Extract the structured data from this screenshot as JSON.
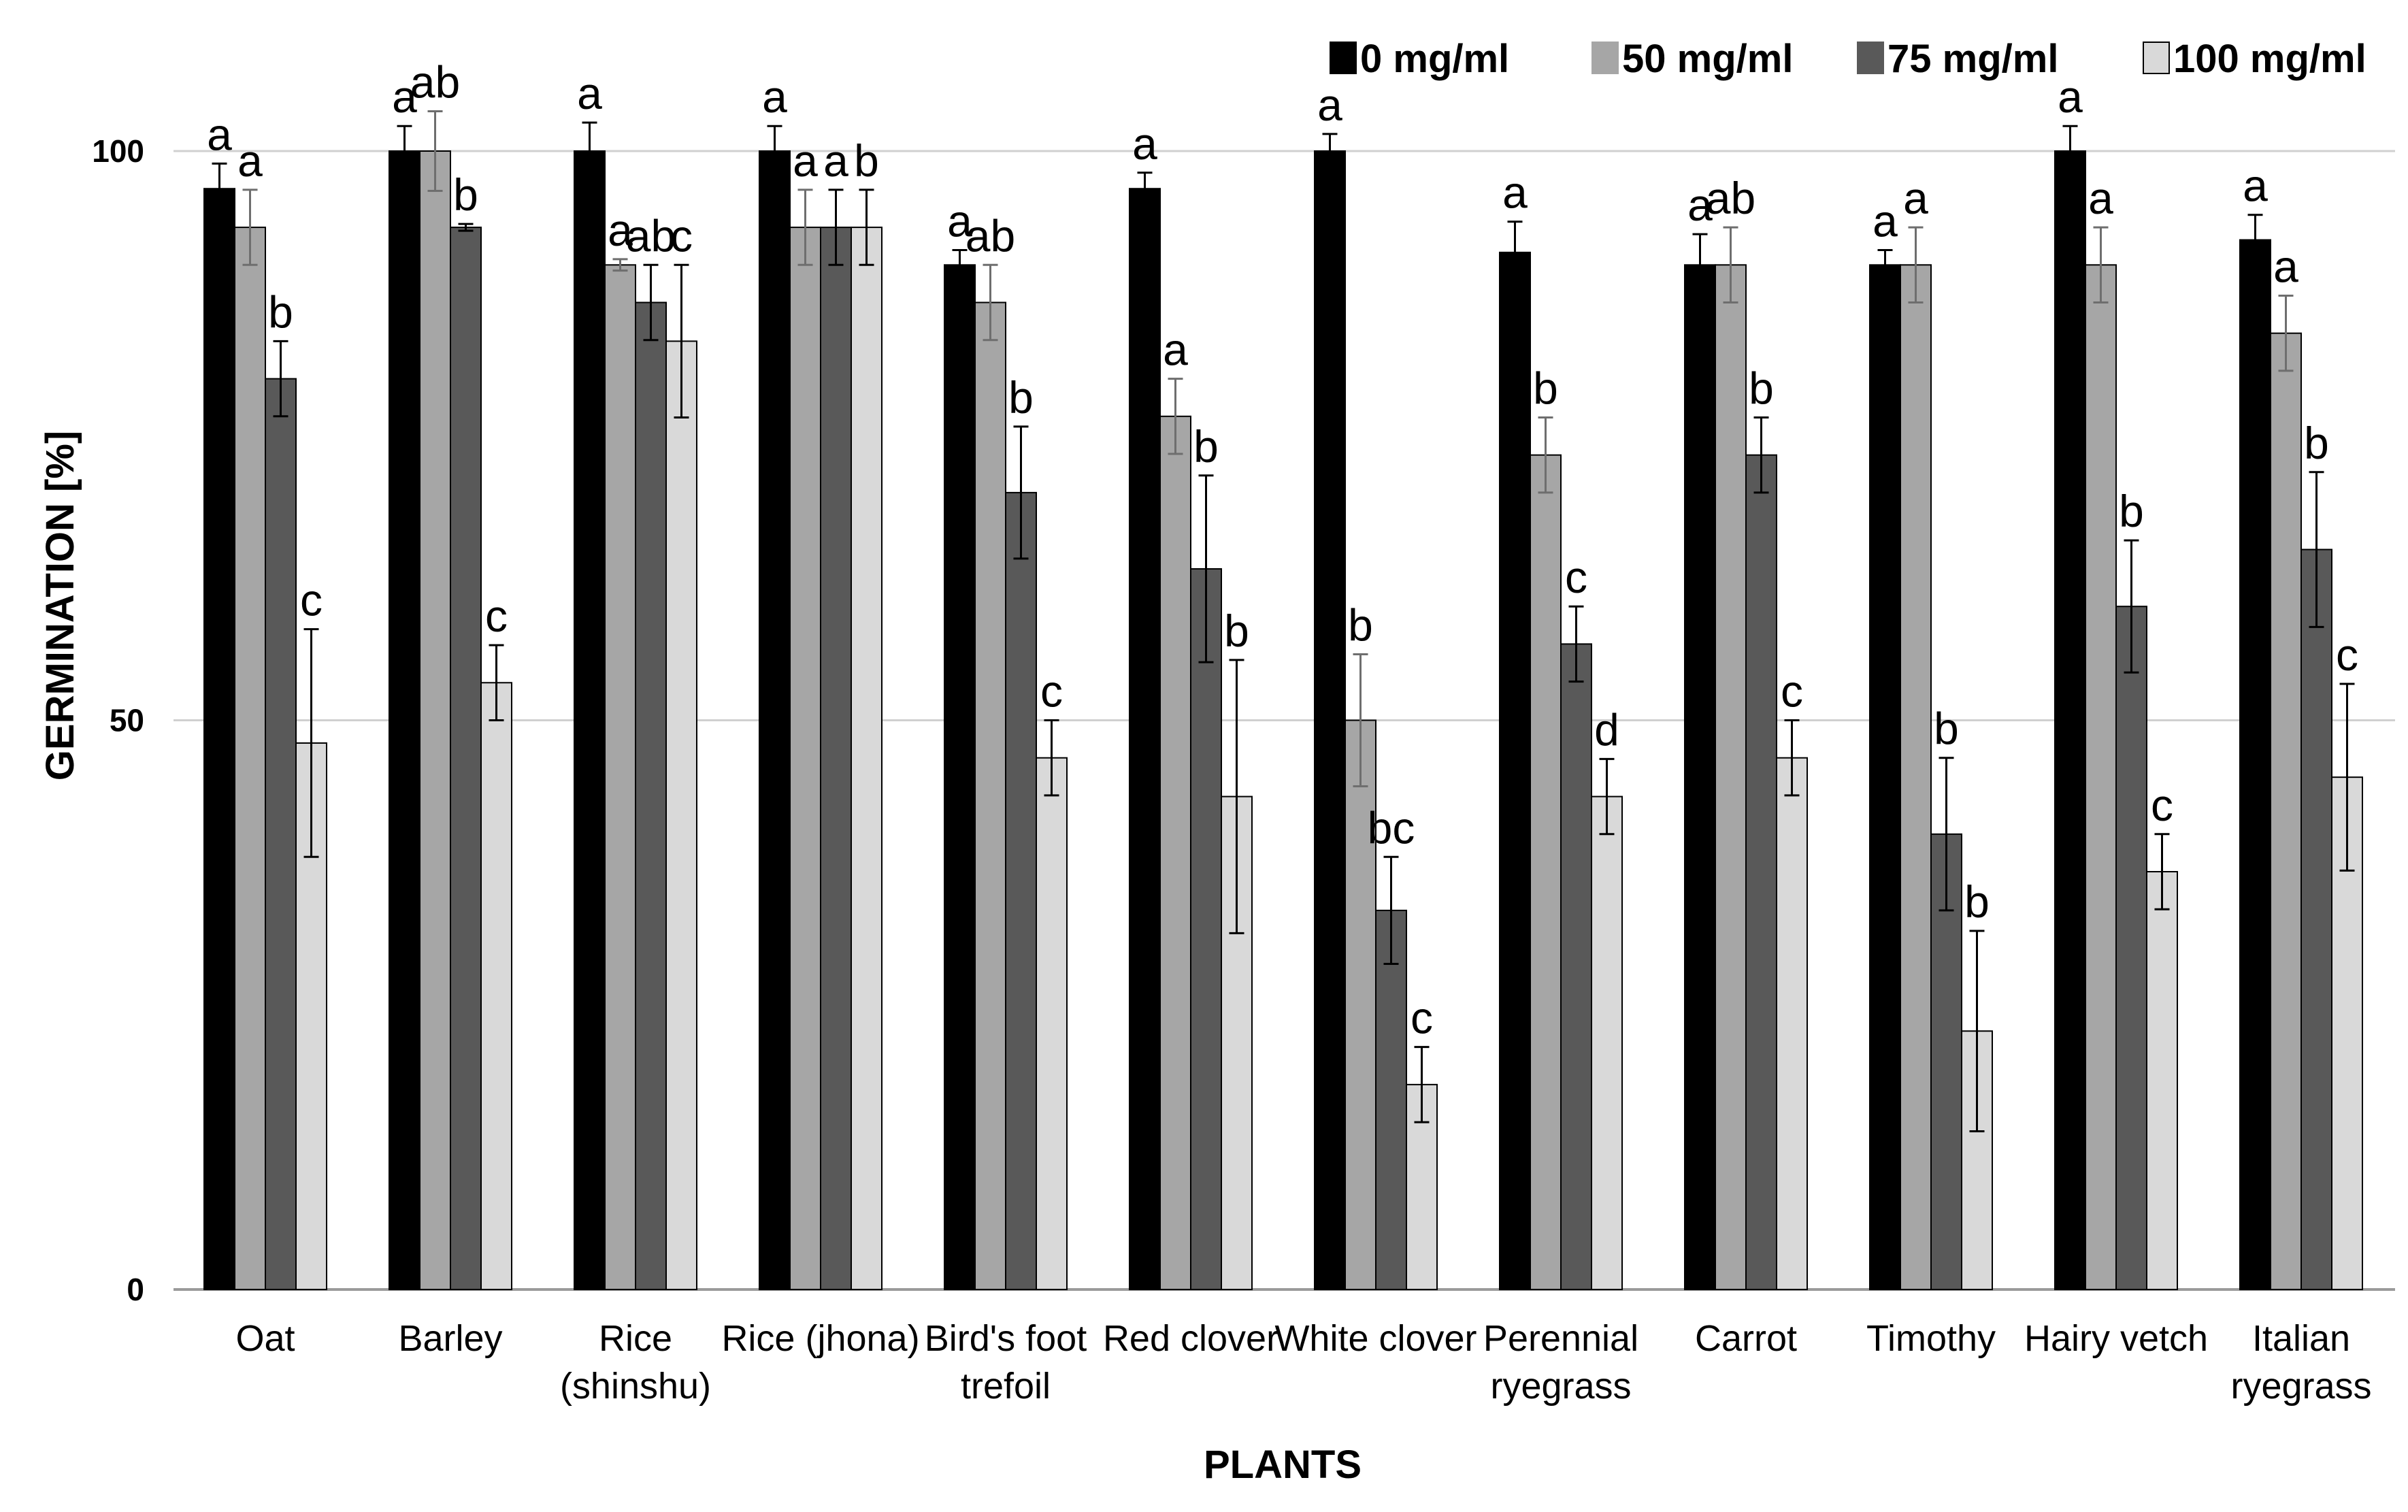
{
  "chart_data": {
    "type": "bar",
    "title": "",
    "xlabel": "PLANTS",
    "ylabel": "GERMINATION [%]",
    "ylim": [
      0,
      100
    ],
    "yticks": [
      "0",
      "50",
      "100"
    ],
    "grid": true,
    "legend_position": "top-right",
    "categories": [
      {
        "label": "Oat",
        "lines": [
          "Oat"
        ]
      },
      {
        "label": "Barley",
        "lines": [
          "Barley"
        ]
      },
      {
        "label": "Rice (shinshu)",
        "lines": [
          "Rice",
          "(shinshu)"
        ]
      },
      {
        "label": "Rice (jhona)",
        "lines": [
          "Rice (jhona)"
        ]
      },
      {
        "label": "Bird's foot trefoil",
        "lines": [
          "Bird's foot",
          "trefoil"
        ]
      },
      {
        "label": "Red clover",
        "lines": [
          "Red clover"
        ]
      },
      {
        "label": "White clover",
        "lines": [
          "White clover"
        ]
      },
      {
        "label": "Perennial ryegrass",
        "lines": [
          "Perennial",
          "ryegrass"
        ]
      },
      {
        "label": "Carrot",
        "lines": [
          "Carrot"
        ]
      },
      {
        "label": "Timothy",
        "lines": [
          "Timothy"
        ]
      },
      {
        "label": "Hairy vetch",
        "lines": [
          "Hairy vetch"
        ]
      },
      {
        "label": "Italian ryegrass",
        "lines": [
          "Italian",
          "ryegrass"
        ]
      }
    ],
    "series": [
      {
        "name": "0 mg/ml",
        "color": "#000000",
        "values": [
          96.7,
          100,
          100,
          100,
          90,
          96.7,
          100,
          91.1,
          90,
          90,
          100,
          92.2
        ],
        "errors": [
          2.2,
          2.2,
          2.5,
          2.2,
          1.3,
          1.4,
          1.5,
          2.7,
          2.7,
          1.3,
          2.2,
          2.2
        ],
        "letters": [
          "a",
          "a",
          "a",
          "a",
          "a",
          "a",
          "a",
          "a",
          "a",
          "a",
          "a",
          "a"
        ]
      },
      {
        "name": "50 mg/ml",
        "color": "#a6a6a6",
        "values": [
          93.3,
          100,
          90,
          93.3,
          86.7,
          76.7,
          50,
          73.3,
          90,
          90,
          90,
          84
        ],
        "errors": [
          3.3,
          3.5,
          0.5,
          3.3,
          3.3,
          3.3,
          5.8,
          3.3,
          3.3,
          3.3,
          3.3,
          3.3
        ],
        "letters": [
          "a",
          "ab",
          "a",
          "a",
          "ab",
          "a",
          "b",
          "b",
          "ab",
          "a",
          "a",
          "a"
        ]
      },
      {
        "name": "75 mg/ml",
        "color": "#595959",
        "values": [
          80,
          93.3,
          86.7,
          93.3,
          70,
          63.3,
          33.3,
          56.7,
          73.3,
          40,
          60,
          65
        ],
        "errors": [
          3.3,
          0.3,
          3.3,
          3.3,
          5.8,
          8.2,
          4.7,
          3.3,
          3.3,
          6.7,
          5.8,
          6.8
        ],
        "letters": [
          "b",
          "b",
          "ab",
          "a",
          "b",
          "b",
          "bc",
          "c",
          "b",
          "b",
          "b",
          "b"
        ]
      },
      {
        "name": "100 mg/ml",
        "color": "#d9d9d9",
        "values": [
          48,
          53.3,
          83.3,
          93.3,
          46.7,
          43.3,
          18,
          43.3,
          46.7,
          22.7,
          36.7,
          45
        ],
        "errors": [
          10,
          3.3,
          6.7,
          3.3,
          3.3,
          12,
          3.3,
          3.3,
          3.3,
          8.8,
          3.3,
          8.2
        ],
        "letters": [
          "c",
          "c",
          "c",
          "b",
          "c",
          "b",
          "c",
          "d",
          "c",
          "b",
          "c",
          "c"
        ]
      }
    ]
  }
}
